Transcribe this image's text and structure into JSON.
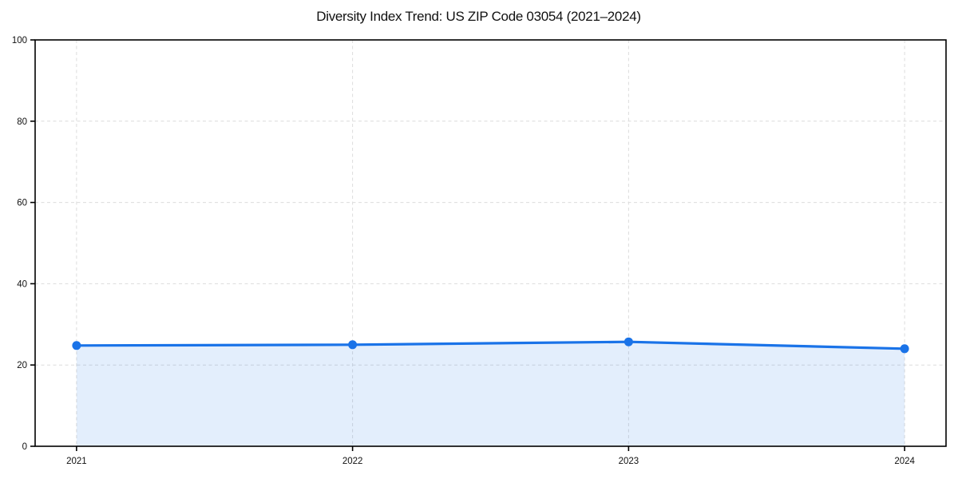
{
  "title": "Diversity Index Trend: US ZIP Code 03054 (2021–2024)",
  "chart_data": {
    "type": "line",
    "title": "Diversity Index Trend: US ZIP Code 03054 (2021–2024)",
    "categories": [
      "2021",
      "2022",
      "2023",
      "2024"
    ],
    "x": [
      2021,
      2022,
      2023,
      2024
    ],
    "series": [
      {
        "name": "Diversity Index",
        "values": [
          24.8,
          25.0,
          25.7,
          24.0
        ]
      }
    ],
    "xlabel": "",
    "ylabel": "",
    "xlim": [
      2020.85,
      2024.15
    ],
    "ylim": [
      0,
      100
    ],
    "xticks": [
      2021,
      2022,
      2023,
      2024
    ],
    "yticks": [
      0,
      20,
      40,
      60,
      80,
      100
    ],
    "grid": true,
    "grid_style": "dashed",
    "legend_position": "none",
    "area_fill": true,
    "colors": {
      "line": "#1a73e8",
      "marker": "#1a73e8",
      "fill": "#1a73e8",
      "fill_opacity": 0.12,
      "grid": "#dcdcdc",
      "spine": "#000000",
      "text": "#111111",
      "background": "#ffffff"
    }
  }
}
